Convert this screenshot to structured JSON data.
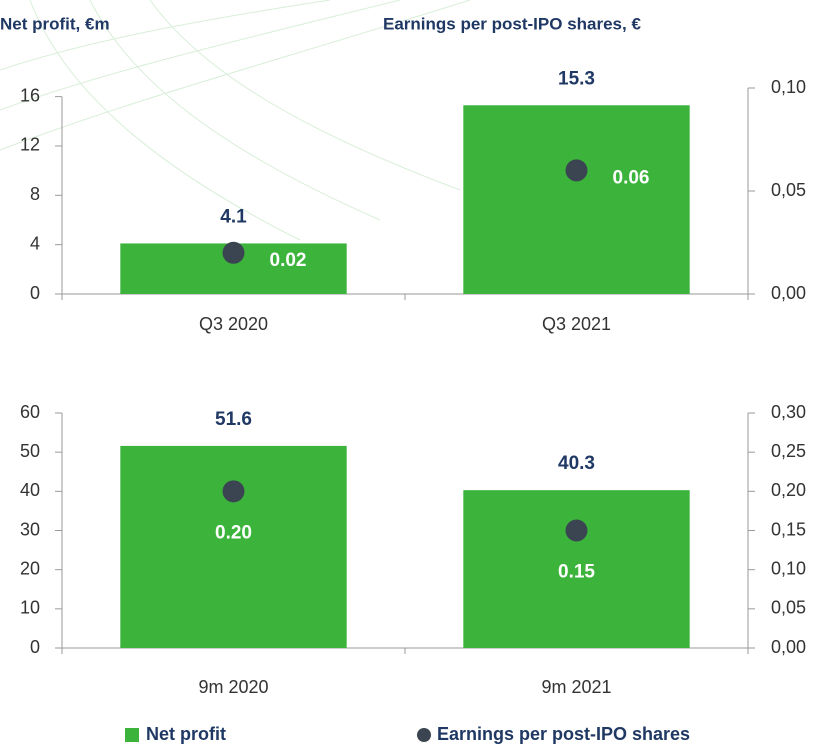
{
  "chart_data": [
    {
      "type": "bar",
      "y_label": "Net profit, €m",
      "y2_label": "Earnings per post-IPO shares, €",
      "categories": [
        "Q3 2020",
        "Q3 2021"
      ],
      "series": [
        {
          "name": "Net profit",
          "color": "#3cb43c",
          "values": [
            4.1,
            15.3
          ]
        },
        {
          "name": "Earnings per post-IPO shares",
          "color": "#3b4551",
          "axis": "y2",
          "values": [
            0.02,
            0.06
          ]
        }
      ],
      "ylim": [
        0,
        16.7
      ],
      "yticks": [
        0,
        4,
        8,
        12,
        16
      ],
      "y2lim": [
        0,
        0.1
      ],
      "y2ticks": [
        {
          "value": 0,
          "label": "0,00"
        },
        {
          "value": 0.05,
          "label": "0,05"
        },
        {
          "value": 0.1,
          "label": "0,10"
        }
      ],
      "legend": "bottom"
    },
    {
      "type": "bar",
      "categories": [
        "9m 2020",
        "9m 2021"
      ],
      "series": [
        {
          "color": "#3cb43c",
          "values": [
            51.6,
            40.3
          ]
        },
        {
          "color": "#3b4551",
          "axis": "y2",
          "values": [
            0.2,
            0.15
          ],
          "value_labels": [
            "0.20",
            "0.15"
          ]
        }
      ],
      "ylim": [
        0,
        60
      ],
      "yticks": [
        0,
        10,
        20,
        30,
        40,
        50,
        60
      ],
      "y2lim": [
        0,
        0.3
      ],
      "y2ticks": [
        {
          "value": 0,
          "label": "0,00"
        },
        {
          "value": 0.05,
          "label": "0,05"
        },
        {
          "value": 0.1,
          "label": "0,10"
        },
        {
          "value": 0.15,
          "label": "0,15"
        },
        {
          "value": 0.2,
          "label": "0,20"
        },
        {
          "value": 0.25,
          "label": "0,25"
        },
        {
          "value": 0.3,
          "label": "0,30"
        }
      ]
    }
  ]
}
